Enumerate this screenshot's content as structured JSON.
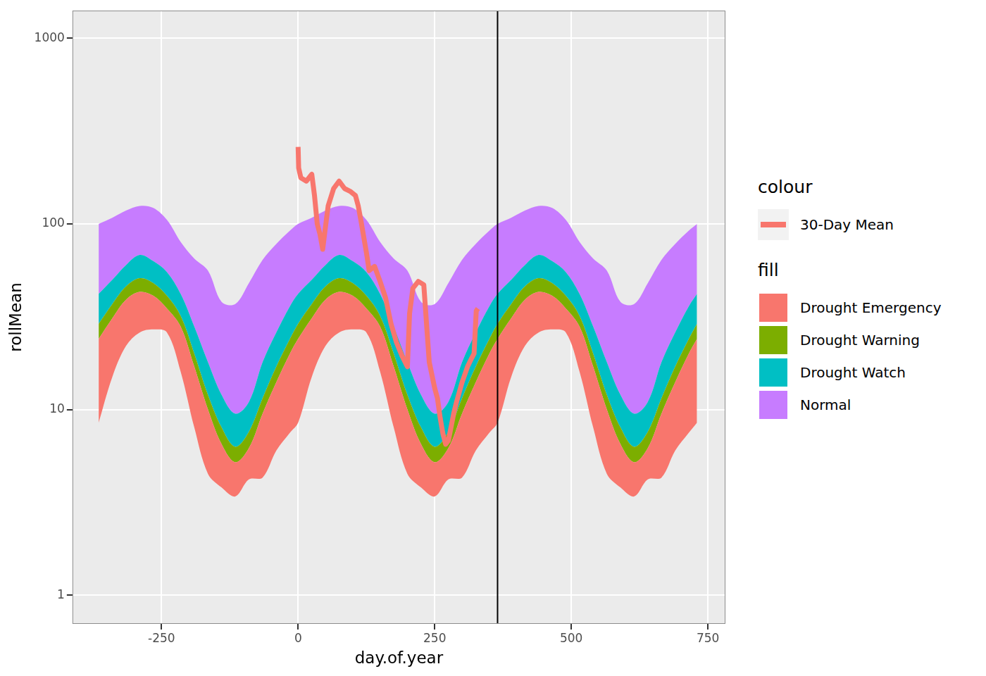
{
  "chart_data": {
    "type": "area",
    "x_label": "day.of.year",
    "y_label": "rollMean",
    "log": "y",
    "grid": true,
    "legend": "right",
    "legend_titles": [
      "colour",
      "fill"
    ],
    "xlim": [
      -413,
      782
    ],
    "xticks": [
      -250,
      0,
      250,
      500,
      750
    ],
    "ylim": [
      0.715,
      1410
    ],
    "yticks": [
      1,
      10,
      100,
      1000
    ],
    "vline": 365,
    "x": [
      -365,
      -340,
      -315,
      -290,
      -265,
      -240,
      -215,
      -190,
      -165,
      -140,
      -115,
      -90,
      -65,
      -40,
      -15,
      0,
      25,
      50,
      75,
      100,
      125,
      150,
      175,
      200,
      225,
      250,
      275,
      300,
      325,
      350,
      365,
      390,
      415,
      440,
      465,
      490,
      515,
      540,
      565,
      590,
      615,
      640,
      665,
      690,
      715,
      730
    ],
    "series": [
      {
        "name": "30-Day Mean",
        "type": "line",
        "color": "#F8766D",
        "x": [
          0,
          1,
          5,
          15,
          25,
          30,
          35,
          40,
          45,
          50,
          55,
          65,
          75,
          85,
          95,
          105,
          110,
          115,
          125,
          130,
          140,
          150,
          160,
          170,
          180,
          190,
          200,
          204,
          210,
          220,
          230,
          235,
          240,
          250,
          255,
          260,
          265,
          270,
          275,
          285,
          290,
          300,
          310,
          318,
          322,
          326,
          329
        ],
        "values": [
          260,
          200,
          177,
          170,
          185,
          142,
          100,
          88,
          73,
          96,
          125,
          155,
          170,
          155,
          150,
          142,
          125,
          104,
          70,
          56,
          59,
          49,
          40,
          29,
          23,
          19.5,
          17,
          33,
          45,
          49,
          47,
          29,
          18,
          13,
          11.5,
          9,
          7.4,
          6.5,
          6.8,
          9.6,
          11,
          14,
          17,
          19,
          20,
          34,
          35
        ]
      },
      {
        "name": "Drought Emergency",
        "type": "area",
        "color": "#F8766D",
        "lower": [
          8.5,
          15,
          22,
          26,
          27,
          26,
          16,
          8,
          4.5,
          3.8,
          3.4,
          4.2,
          4.3,
          6,
          7.5,
          8.5,
          15,
          22,
          26,
          27,
          26,
          16,
          8,
          4.5,
          3.8,
          3.4,
          4.2,
          4.3,
          6,
          7.5,
          8.5,
          15,
          22,
          26,
          27,
          26,
          16,
          8,
          4.5,
          3.8,
          3.4,
          4.2,
          4.3,
          6,
          7.5,
          8.5
        ],
        "upper": [
          24,
          31,
          39,
          43,
          41,
          35,
          28,
          17,
          10,
          6.5,
          5.2,
          6.2,
          9.5,
          14,
          20,
          24,
          31,
          39,
          43,
          41,
          35,
          28,
          17,
          10,
          6.5,
          5.2,
          6.2,
          9.5,
          14,
          20,
          24,
          31,
          39,
          43,
          41,
          35,
          28,
          17,
          10,
          6.5,
          5.2,
          6.2,
          9.5,
          14,
          20,
          24
        ]
      },
      {
        "name": "Drought Warning",
        "type": "area",
        "color": "#7CAE00",
        "lower": [
          24,
          31,
          39,
          43,
          41,
          35,
          28,
          17,
          10,
          6.5,
          5.2,
          6.2,
          9.5,
          14,
          20,
          24,
          31,
          39,
          43,
          41,
          35,
          28,
          17,
          10,
          6.5,
          5.2,
          6.2,
          9.5,
          14,
          20,
          24,
          31,
          39,
          43,
          41,
          35,
          28,
          17,
          10,
          6.5,
          5.2,
          6.2,
          9.5,
          14,
          20,
          24
        ],
        "upper": [
          29,
          37,
          46,
          51,
          48,
          41,
          32,
          20,
          12,
          8,
          6.3,
          7.6,
          11.5,
          17,
          24,
          29,
          37,
          46,
          51,
          48,
          41,
          32,
          20,
          12,
          8,
          6.3,
          7.6,
          11.5,
          17,
          24,
          29,
          37,
          46,
          51,
          48,
          41,
          32,
          20,
          12,
          8,
          6.3,
          7.6,
          11.5,
          17,
          24,
          29
        ]
      },
      {
        "name": "Drought Watch",
        "type": "area",
        "color": "#00BFC4",
        "lower": [
          29,
          37,
          46,
          51,
          48,
          41,
          32,
          20,
          12,
          8,
          6.3,
          7.6,
          11.5,
          17,
          24,
          29,
          37,
          46,
          51,
          48,
          41,
          32,
          20,
          12,
          8,
          6.3,
          7.6,
          11.5,
          17,
          24,
          29,
          37,
          46,
          51,
          48,
          41,
          32,
          20,
          12,
          8,
          6.3,
          7.6,
          11.5,
          17,
          24,
          29
        ],
        "upper": [
          42,
          50,
          60,
          68,
          63,
          55,
          42,
          28,
          18,
          12,
          9.5,
          11,
          18,
          26,
          36,
          42,
          50,
          60,
          68,
          63,
          55,
          42,
          28,
          18,
          12,
          9.5,
          11,
          18,
          26,
          36,
          42,
          50,
          60,
          68,
          63,
          55,
          42,
          28,
          18,
          12,
          9.5,
          11,
          18,
          26,
          36,
          42
        ]
      },
      {
        "name": "Normal",
        "type": "area",
        "color": "#C77CFF",
        "lower": [
          42,
          50,
          60,
          68,
          63,
          55,
          42,
          28,
          18,
          12,
          9.5,
          11,
          18,
          26,
          36,
          42,
          50,
          60,
          68,
          63,
          55,
          42,
          28,
          18,
          12,
          9.5,
          11,
          18,
          26,
          36,
          42,
          50,
          60,
          68,
          63,
          55,
          42,
          28,
          18,
          12,
          9.5,
          11,
          18,
          26,
          36,
          42
        ],
        "upper": [
          100,
          108,
          118,
          125,
          122,
          105,
          80,
          65,
          56,
          38,
          37,
          48,
          64,
          78,
          92,
          100,
          108,
          118,
          125,
          122,
          105,
          80,
          65,
          56,
          38,
          37,
          48,
          64,
          78,
          92,
          100,
          108,
          118,
          125,
          122,
          105,
          80,
          65,
          56,
          38,
          37,
          48,
          64,
          78,
          92,
          100
        ]
      }
    ]
  }
}
